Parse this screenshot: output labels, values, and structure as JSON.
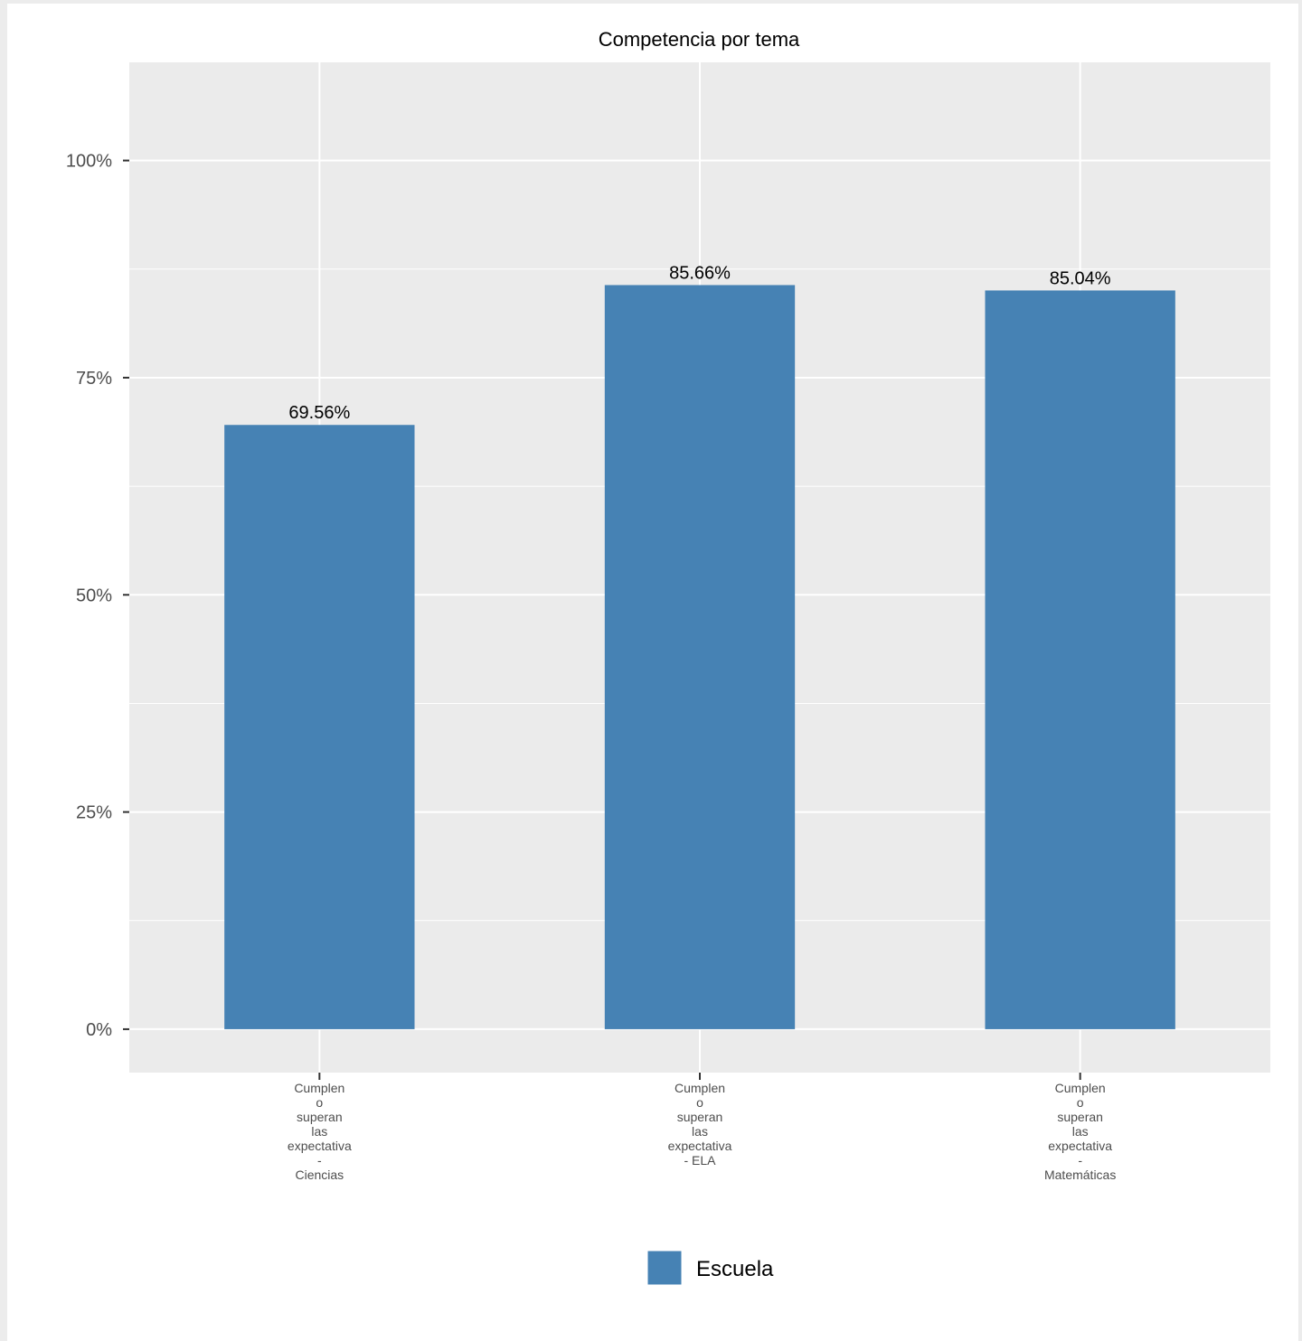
{
  "chart_data": {
    "type": "bar",
    "title": "Competencia por tema",
    "categories": [
      [
        "Cumplen",
        "o",
        "superan",
        "las",
        "expectativa",
        "-",
        "Ciencias"
      ],
      [
        "Cumplen",
        "o",
        "superan",
        "las",
        "expectativa",
        "- ELA"
      ],
      [
        "Cumplen",
        "o",
        "superan",
        "las",
        "expectativa",
        "-",
        "Matemáticas"
      ]
    ],
    "series": [
      {
        "name": "Escuela",
        "values": [
          69.56,
          85.66,
          85.04
        ],
        "color": "#4682b4"
      }
    ],
    "value_labels": [
      "69.56%",
      "85.66%",
      "85.04%"
    ],
    "y_ticks": [
      0,
      25,
      50,
      75,
      100
    ],
    "y_tick_labels": [
      "0%",
      "25%",
      "50%",
      "75%",
      "100%"
    ],
    "ylim": [
      -5,
      111.3
    ],
    "xlabel": "",
    "ylabel": "",
    "grid": true,
    "legend_position": "bottom",
    "panel_background": "#ebebeb",
    "grid_color": "#ffffff"
  }
}
